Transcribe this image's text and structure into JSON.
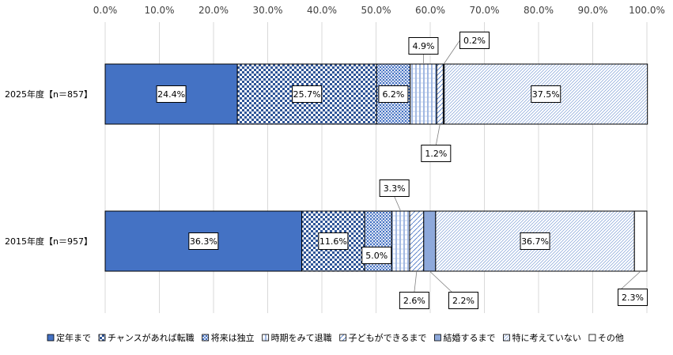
{
  "chart_data": {
    "type": "bar",
    "orientation": "horizontal",
    "stacked": true,
    "percent": true,
    "title": "",
    "xlim": [
      0,
      100
    ],
    "x_ticks": [
      "0.0%",
      "10.0%",
      "20.0%",
      "30.0%",
      "40.0%",
      "50.0%",
      "60.0%",
      "70.0%",
      "80.0%",
      "90.0%",
      "100.0%"
    ],
    "grid": true,
    "legend_position": "bottom",
    "categories": [
      "2025年度【n＝857】",
      "2015年度【n＝957】"
    ],
    "series": [
      {
        "name": "定年まで",
        "values": [
          24.4,
          36.3
        ],
        "fill": "solid",
        "color": "#4472C4"
      },
      {
        "name": "チャンスがあれば転職",
        "values": [
          25.7,
          11.6
        ],
        "fill": "checker",
        "color": "#4472C4"
      },
      {
        "name": "将来は独立",
        "values": [
          6.2,
          5.0
        ],
        "fill": "dots",
        "color": "#4472C4"
      },
      {
        "name": "時期をみて退職",
        "values": [
          4.9,
          3.3
        ],
        "fill": "vlines",
        "color": "#4472C4"
      },
      {
        "name": "子どもができるまで",
        "values": [
          1.2,
          2.6
        ],
        "fill": "diag",
        "color": "#4472C4"
      },
      {
        "name": "結婚するまで",
        "values": [
          0.2,
          2.2
        ],
        "fill": "light",
        "color": "#8EA9DB"
      },
      {
        "name": "特に考えていない",
        "values": [
          37.5,
          36.7
        ],
        "fill": "hatch",
        "color": "#4472C4"
      },
      {
        "name": "その他",
        "values": [
          0.0,
          2.3
        ],
        "fill": "none",
        "color": "#FFFFFF"
      }
    ],
    "data_labels": [
      [
        "24.4%",
        "36.3%"
      ],
      [
        "25.7%",
        "11.6%"
      ],
      [
        "6.2%",
        "5.0%"
      ],
      [
        "4.9%",
        "3.3%"
      ],
      [
        "1.2%",
        "2.6%"
      ],
      [
        "0.2%",
        "2.2%"
      ],
      [
        "37.5%",
        "36.7%"
      ],
      [
        "",
        "2.3%"
      ]
    ]
  }
}
